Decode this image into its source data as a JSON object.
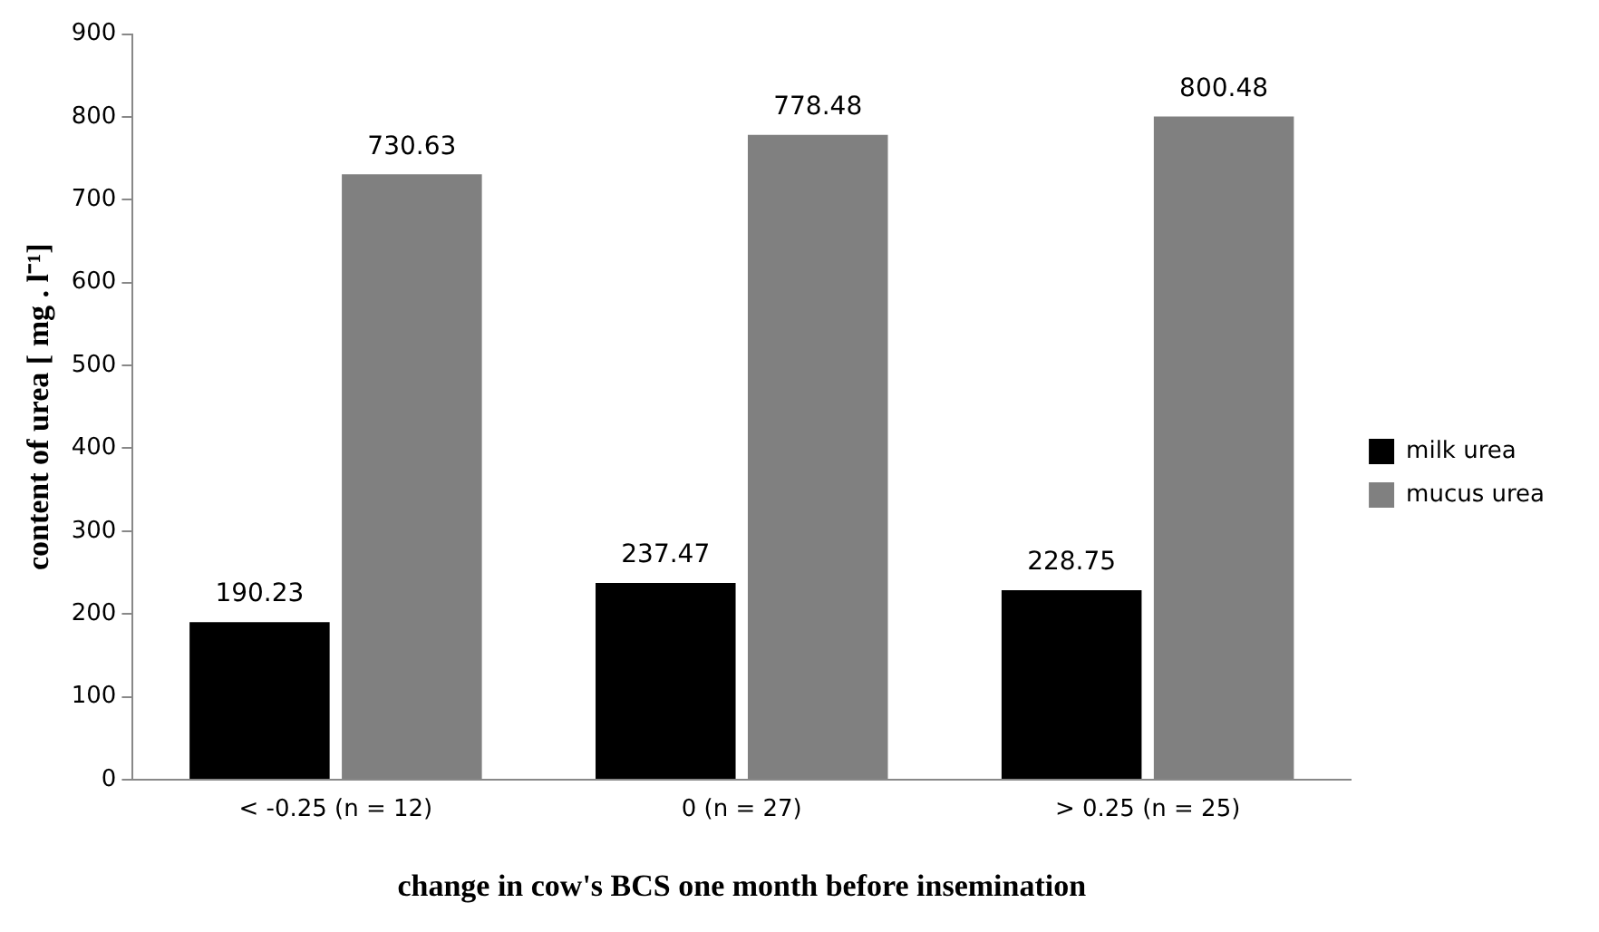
{
  "chart_data": {
    "type": "bar",
    "xlabel": "change in cow's BCS one month before insemination",
    "ylabel": "content of urea [ mg . l⁻¹]",
    "categories": [
      "< -0.25 (n = 12)",
      "0 (n = 27)",
      "> 0.25 (n = 25)"
    ],
    "series": [
      {
        "name": "milk urea",
        "color": "#000000",
        "values": [
          190.23,
          237.47,
          228.75
        ]
      },
      {
        "name": "mucus urea",
        "color": "#808080",
        "values": [
          730.63,
          778.48,
          800.48
        ]
      }
    ],
    "ylim": [
      0,
      900
    ],
    "yticks": [
      0,
      100,
      200,
      300,
      400,
      500,
      600,
      700,
      800,
      900
    ],
    "grid": false,
    "legend": "right",
    "data_labels": true
  }
}
